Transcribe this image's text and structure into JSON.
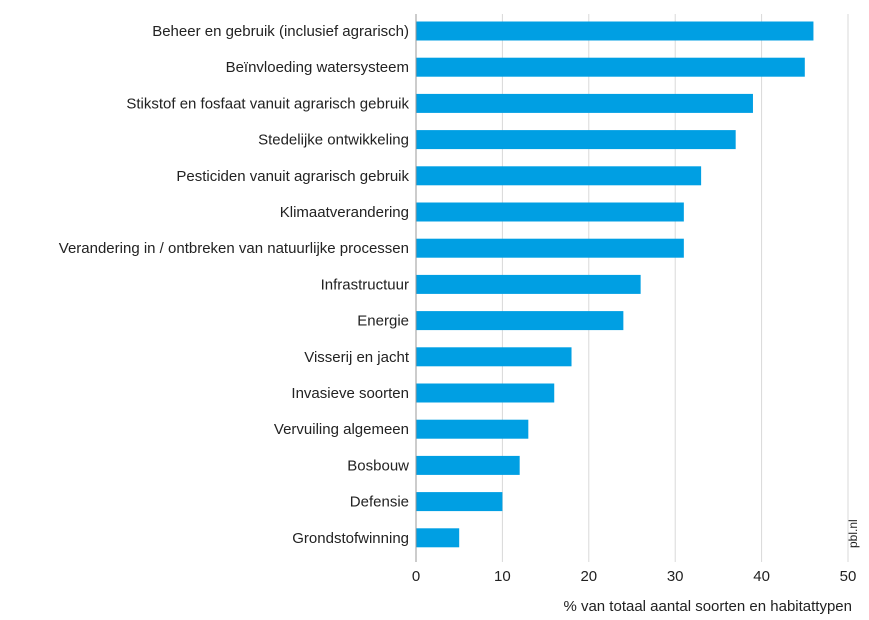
{
  "chart_data": {
    "type": "bar",
    "orientation": "horizontal",
    "categories": [
      "Beheer en gebruik (inclusief agrarisch)",
      "Beïnvloeding watersysteem",
      "Stikstof en fosfaat vanuit agrarisch gebruik",
      "Stedelijke ontwikkeling",
      "Pesticiden vanuit agrarisch gebruik",
      "Klimaatverandering",
      "Verandering in / ontbreken van natuurlijke processen",
      "Infrastructuur",
      "Energie",
      "Visserij en jacht",
      "Invasieve soorten",
      "Vervuiling algemeen",
      "Bosbouw",
      "Defensie",
      "Grondstofwinning"
    ],
    "values": [
      46,
      45,
      39,
      37,
      33,
      31,
      31,
      26,
      24,
      18,
      16,
      13,
      12,
      10,
      5
    ],
    "xlabel": "% van totaal aantal soorten en habitattypen",
    "xlim": [
      0,
      50
    ],
    "xticks": [
      0,
      10,
      20,
      30,
      40,
      50
    ],
    "grid": "vertical",
    "bar_color": "#009fe3",
    "grid_color": "#d9d9d9",
    "source_label": "pbl.nl"
  }
}
